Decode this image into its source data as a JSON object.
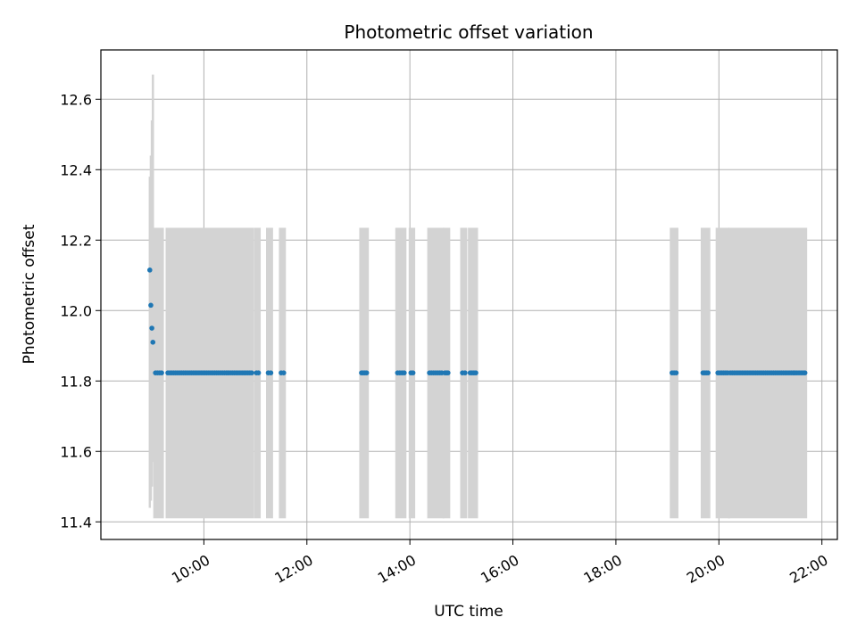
{
  "chart_data": {
    "type": "scatter",
    "title": "Photometric offset variation",
    "xlabel": "UTC time",
    "ylabel": "Photometric offset",
    "x_unit": "UTC hours",
    "xlim": [
      8.0,
      22.3
    ],
    "ylim": [
      11.35,
      12.74
    ],
    "x_ticks": [
      10,
      12,
      14,
      16,
      18,
      20,
      22
    ],
    "x_tick_labels": [
      "10:00",
      "12:00",
      "14:00",
      "16:00",
      "18:00",
      "20:00",
      "22:00"
    ],
    "y_ticks": [
      11.4,
      11.6,
      11.8,
      12.0,
      12.2,
      12.4,
      12.6
    ],
    "y_tick_labels": [
      "11.4",
      "11.6",
      "11.8",
      "12.0",
      "12.2",
      "12.4",
      "12.6"
    ],
    "grid": true,
    "colors": {
      "points": "#1f77b4",
      "errorbars": "#d3d3d3"
    },
    "error_bars_wide": [
      {
        "x": 8.95,
        "y": 11.91,
        "low": 11.44,
        "high": 12.38
      },
      {
        "x": 8.97,
        "y": 11.95,
        "low": 11.46,
        "high": 12.44
      },
      {
        "x": 8.99,
        "y": 12.02,
        "low": 11.5,
        "high": 12.54
      },
      {
        "x": 9.01,
        "y": 12.12,
        "low": 11.57,
        "high": 12.67
      }
    ],
    "error_bar_x_ranges": [
      {
        "from": 9.06,
        "to": 9.18
      },
      {
        "from": 9.3,
        "to": 10.93
      },
      {
        "from": 11.02,
        "to": 11.06
      },
      {
        "from": 11.25,
        "to": 11.3
      },
      {
        "from": 11.5,
        "to": 11.55
      },
      {
        "from": 13.06,
        "to": 13.16
      },
      {
        "from": 13.76,
        "to": 13.89
      },
      {
        "from": 14.02,
        "to": 14.06
      },
      {
        "from": 14.38,
        "to": 14.62
      },
      {
        "from": 14.68,
        "to": 14.74
      },
      {
        "from": 15.02,
        "to": 15.07
      },
      {
        "from": 15.17,
        "to": 15.28
      },
      {
        "from": 19.09,
        "to": 19.17
      },
      {
        "from": 19.69,
        "to": 19.79
      },
      {
        "from": 19.98,
        "to": 20.17
      },
      {
        "from": 20.22,
        "to": 21.67
      }
    ],
    "error_bar_low": 11.41,
    "error_bar_high": 12.235,
    "points_high": [
      {
        "x": 8.95,
        "y": 12.115
      },
      {
        "x": 8.97,
        "y": 12.015
      },
      {
        "x": 8.99,
        "y": 11.95
      },
      {
        "x": 9.01,
        "y": 11.91
      }
    ],
    "point_x_ranges": [
      {
        "from": 9.06,
        "to": 9.18
      },
      {
        "from": 9.3,
        "to": 10.93
      },
      {
        "from": 11.02,
        "to": 11.06
      },
      {
        "from": 11.25,
        "to": 11.3
      },
      {
        "from": 11.5,
        "to": 11.55
      },
      {
        "from": 13.06,
        "to": 13.16
      },
      {
        "from": 13.76,
        "to": 13.89
      },
      {
        "from": 14.02,
        "to": 14.06
      },
      {
        "from": 14.38,
        "to": 14.62
      },
      {
        "from": 14.68,
        "to": 14.74
      },
      {
        "from": 15.02,
        "to": 15.07
      },
      {
        "from": 15.17,
        "to": 15.28
      },
      {
        "from": 19.09,
        "to": 19.17
      },
      {
        "from": 19.69,
        "to": 19.79
      },
      {
        "from": 19.98,
        "to": 20.17
      },
      {
        "from": 20.22,
        "to": 21.67
      }
    ],
    "point_y": 11.823
  }
}
